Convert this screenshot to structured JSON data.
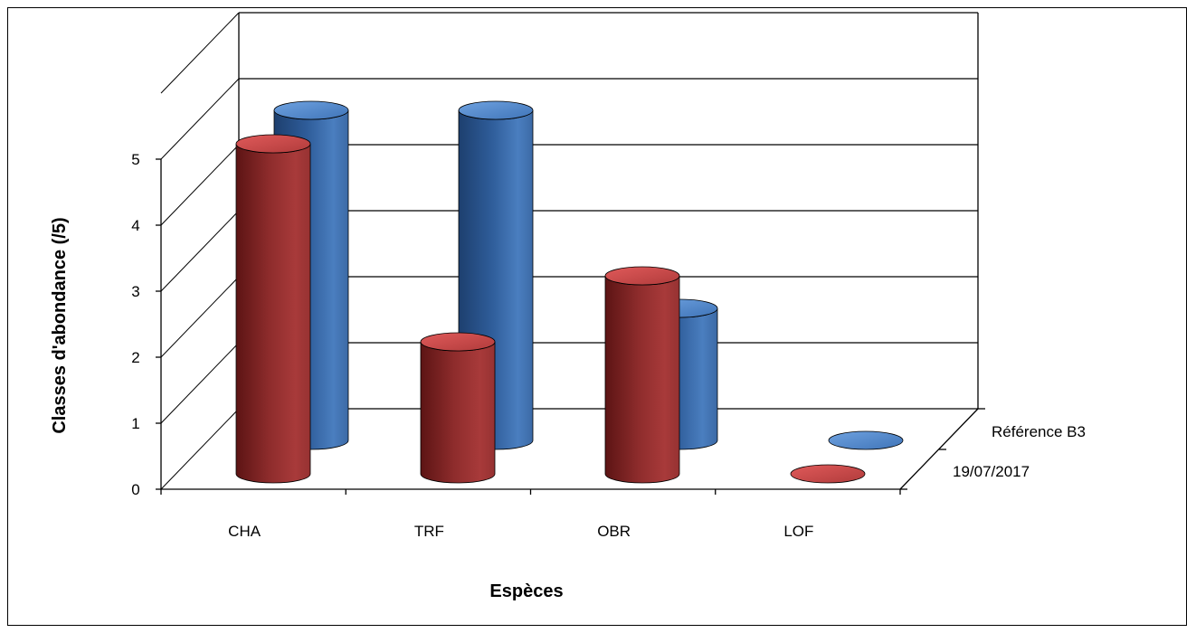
{
  "chart_data": {
    "type": "bar",
    "style": "3d-cylinder",
    "categories": [
      "CHA",
      "TRF",
      "OBR",
      "LOF"
    ],
    "series": [
      {
        "name": "Référence B3",
        "values": [
          5,
          5,
          2,
          0
        ],
        "color": "#4a7ebf"
      },
      {
        "name": "19/07/2017",
        "values": [
          5,
          2,
          3,
          0
        ],
        "color": "#a83a3a"
      }
    ],
    "xlabel": "Espèces",
    "ylabel": "Classes d'abondance  (/5)",
    "yticks": [
      "0",
      "1",
      "2",
      "3",
      "4",
      "5"
    ],
    "ylim": [
      0,
      5
    ],
    "grid": true
  }
}
